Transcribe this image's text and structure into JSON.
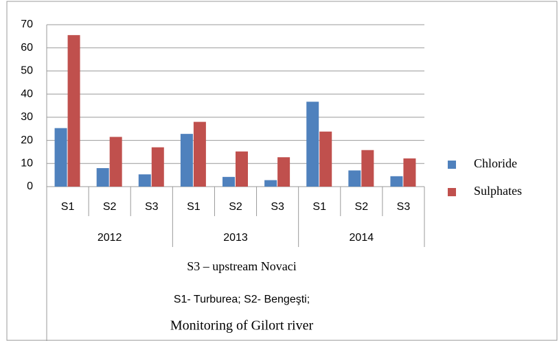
{
  "chart_data": {
    "type": "bar",
    "categories": [
      "S1",
      "S2",
      "S3",
      "S1",
      "S2",
      "S3",
      "S1",
      "S2",
      "S3"
    ],
    "group_labels": [
      "2012",
      "2013",
      "2014"
    ],
    "xlabel_lines": [
      "S3 –   upstream Novaci",
      "S1- Turburea; S2- Bengeşti;",
      "Monitoring of Gilort river"
    ],
    "series": [
      {
        "name": "Chloride",
        "color": "#4f81bd",
        "values": [
          25.3,
          8,
          5.3,
          22.8,
          4.2,
          2.8,
          36.7,
          7,
          4.5
        ]
      },
      {
        "name": "Sulphates",
        "color": "#c0504d",
        "values": [
          65.5,
          21.5,
          17,
          28,
          15.2,
          12.7,
          23.8,
          15.8,
          12.2
        ]
      }
    ],
    "ylim": [
      0,
      70
    ],
    "yticks": [
      0,
      10,
      20,
      30,
      40,
      50,
      60,
      70
    ],
    "grid": true,
    "legend": "right"
  }
}
